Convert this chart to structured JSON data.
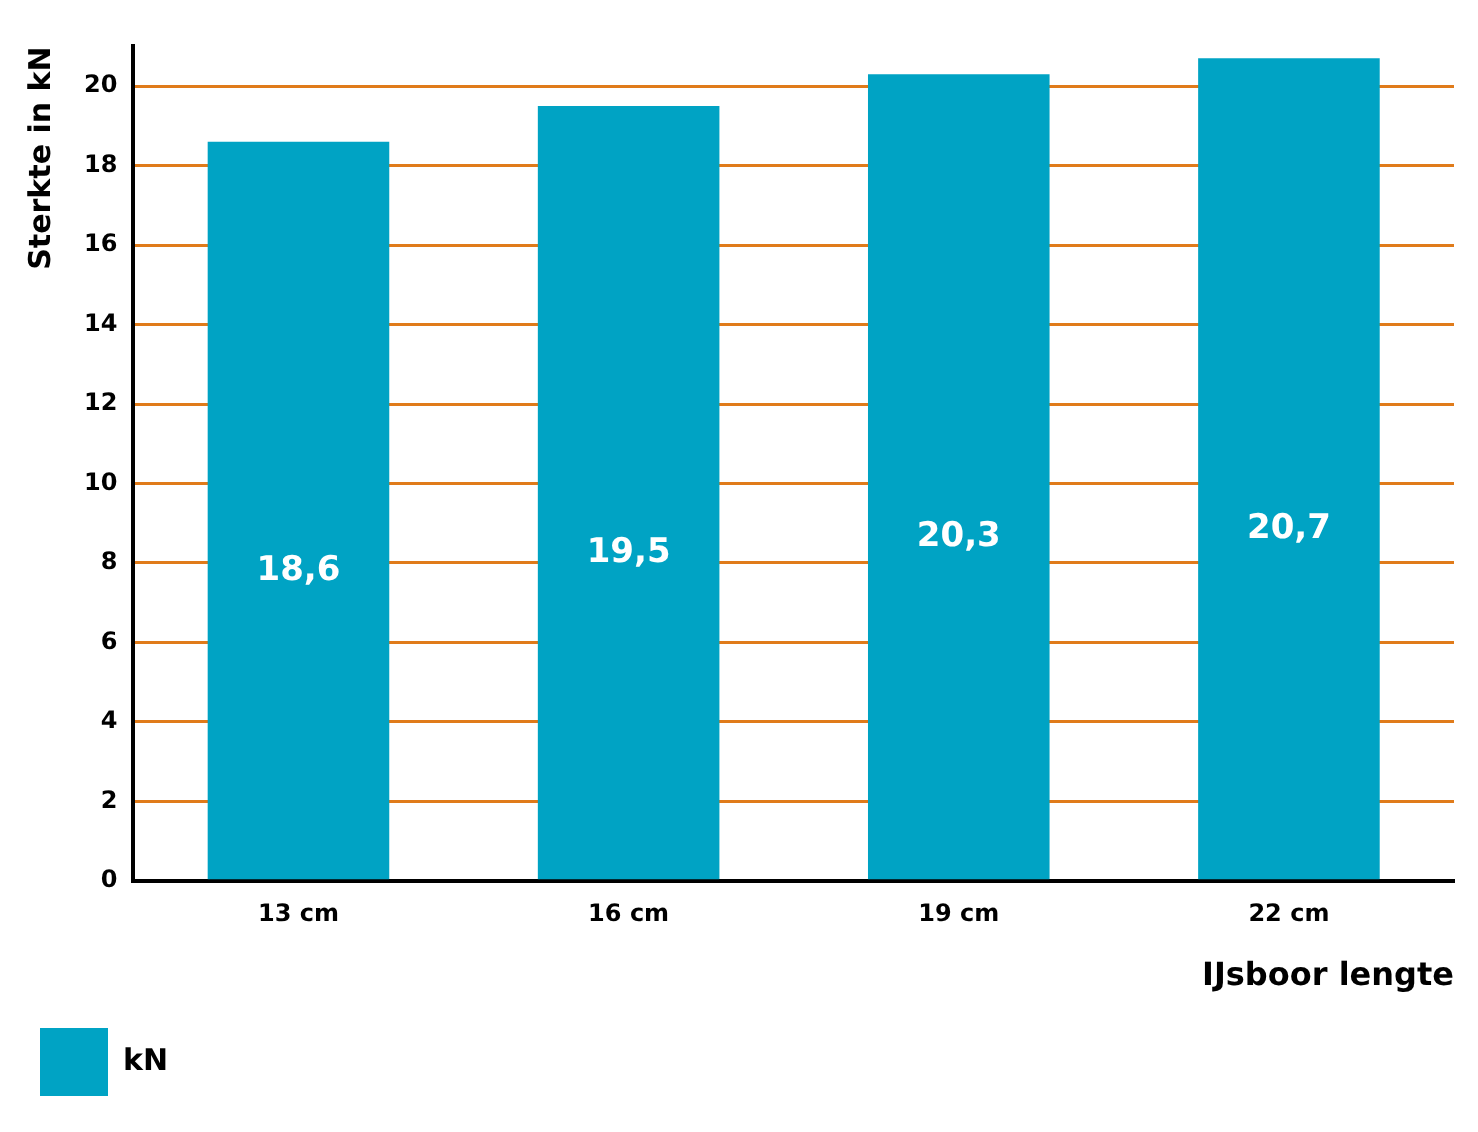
{
  "chart_data": {
    "type": "bar",
    "xlabel": "IJsboor lengte",
    "ylabel": "Sterkte in kN",
    "categories": [
      "13 cm",
      "16 cm",
      "19 cm",
      "22 cm"
    ],
    "series": [
      {
        "name": "kN",
        "color": "#00a3c4",
        "values": [
          18.6,
          19.5,
          20.3,
          20.7
        ],
        "value_labels": [
          "18,6",
          "19,5",
          "20,3",
          "20,7"
        ]
      }
    ],
    "ylim": [
      0,
      21
    ],
    "yticks": [
      0,
      2,
      4,
      6,
      8,
      10,
      12,
      14,
      16,
      18,
      20
    ],
    "grid": "y",
    "legend": "bottom left"
  }
}
